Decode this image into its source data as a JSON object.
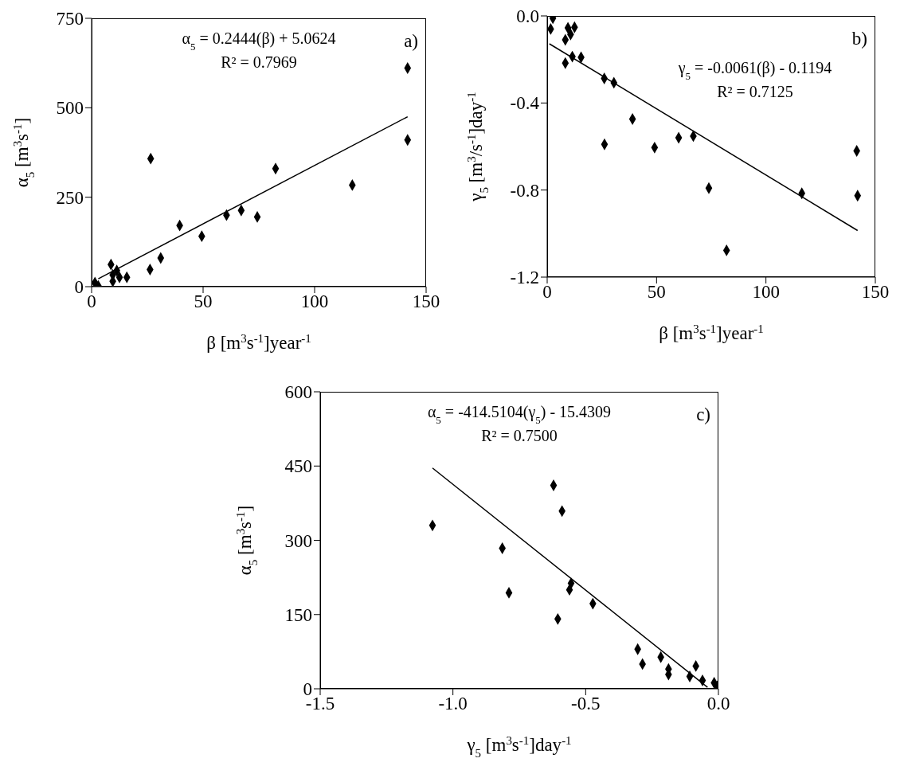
{
  "chart_data": [
    {
      "type": "scatter",
      "xlabel": "β [m$^{3}$s$^{-1}$]year$^{-1}$",
      "ylabel": "α$_{5}$ [m$^{3}$s$^{-1}$]",
      "annotations": [
        "α$_{5}$ = 0.2444(β) + 5.0624",
        "R² = 0.7969",
        "a)"
      ],
      "xlim": [
        0,
        150
      ],
      "xticks": [
        0,
        50,
        100,
        150
      ],
      "ylim": [
        0,
        750
      ],
      "yticks": [
        0,
        250,
        500,
        750
      ],
      "marker": "diamond",
      "series": [
        {
          "color": "#000000",
          "x": [
            141.7,
            141.7,
            26.5,
            82.5,
            116.9,
            60.5,
            67.1,
            74.3,
            39.5,
            49.4,
            31,
            26.2,
            8.7,
            11.3,
            9.5,
            12.5,
            15.8,
            9.5,
            2.4,
            1.5,
            3
          ],
          "values": [
            611,
            410,
            358,
            330,
            284,
            200,
            213,
            195,
            171,
            141,
            80,
            48,
            62,
            45,
            33,
            26,
            26,
            15,
            null,
            11,
            2
          ]
        },
        {
          "type": "line",
          "color": "#000000",
          "marker": "none",
          "x": [
            3,
            141.7
          ],
          "values": [
            22,
            475
          ]
        }
      ]
    },
    {
      "type": "scatter",
      "xlabel": "β [m$^{3}$s$^{-1}$]year$^{-1}$",
      "ylabel": "γ$_{5}$ [m$^{3}$/s$^{-1}$]day$^{-1}$",
      "annotations": [
        "γ$_{5}$ = -0.0061(β) - 0.1194",
        "R² = 0.7125",
        "b)"
      ],
      "xlim": [
        0,
        150
      ],
      "xticks": [
        0,
        50,
        100,
        150
      ],
      "ylim": [
        -1.2,
        0
      ],
      "yticks": [
        {
          "value": -1.2,
          "label": "-1.2"
        },
        {
          "value": -0.8,
          "label": "-0.8"
        },
        {
          "value": -0.4,
          "label": "-0.4"
        },
        {
          "value": 0,
          "label": "0.0"
        }
      ],
      "marker": "diamond",
      "series": [
        {
          "color": "#000000",
          "x": [
            2.6,
            1.6,
            9.5,
            12.5,
            10.7,
            8.3,
            8.3,
            11.5,
            15.5,
            26.1,
            30.5,
            39,
            26.2,
            49.1,
            60.1,
            66.8,
            73.9,
            82,
            116.4,
            141.5,
            141.9
          ],
          "values": [
            -0.01,
            -0.06,
            -0.055,
            -0.052,
            -0.085,
            -0.11,
            -0.217,
            -0.187,
            -0.19,
            -0.287,
            -0.307,
            -0.474,
            -0.59,
            -0.605,
            -0.56,
            -0.552,
            -0.791,
            -1.077,
            -0.815,
            -0.62,
            -0.826
          ]
        },
        {
          "type": "line",
          "color": "#000000",
          "marker": "none",
          "x": [
            1,
            141.9
          ],
          "values": [
            -0.128,
            -0.986
          ]
        }
      ]
    },
    {
      "type": "scatter",
      "xlabel": "γ$_{5}$ [m$^{3}$s$^{-1}$]day$^{-1}$",
      "ylabel": "α$_{5}$ [m$^{3}$s$^{-1}$]",
      "annotations": [
        "α$_{5}$ = -414.5104(γ$_{5}$) - 15.4309",
        "R² = 0.7500",
        "c)"
      ],
      "xlim": [
        -1.5,
        0
      ],
      "xticks": [
        -1.5,
        {
          "value": -1,
          "label": "-1.0"
        },
        -0.5,
        {
          "value": 0,
          "label": "0.0"
        }
      ],
      "ylim": [
        0,
        600
      ],
      "yticks": [
        0,
        150,
        300,
        450,
        600
      ],
      "marker": "diamond",
      "series": [
        {
          "color": "#000000",
          "x": [
            -1.077,
            -0.814,
            -0.789,
            -0.621,
            -0.589,
            -0.605,
            -0.555,
            -0.561,
            -0.473,
            -0.304,
            -0.286,
            -0.217,
            -0.188,
            -0.188,
            -0.113,
            -0.108,
            -0.085,
            -0.063,
            -0.06,
            -0.016,
            -0.004
          ],
          "values": [
            330,
            284,
            194,
            411,
            359,
            141,
            213,
            200,
            172,
            80,
            50,
            64,
            40,
            29,
            null,
            25,
            46,
            null,
            17,
            12,
            5
          ]
        },
        {
          "type": "line",
          "color": "#000000",
          "marker": "none",
          "x": [
            -1.077,
            -0.041
          ],
          "values": [
            446,
            3
          ]
        }
      ]
    }
  ]
}
